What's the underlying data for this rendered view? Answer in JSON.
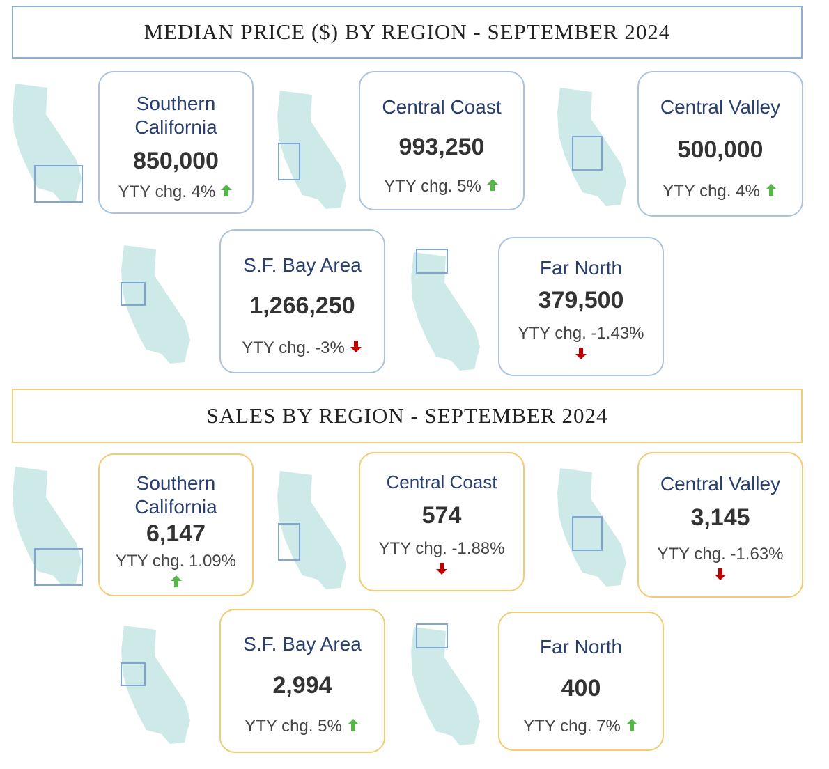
{
  "sections": [
    {
      "title": "MEDIAN PRICE ($) BY REGION - SEPTEMBER 2024",
      "cards": [
        {
          "region_line1": "Southern",
          "region_line2": "California",
          "value": "850,000",
          "chg": "YTY chg. 4%",
          "direction": "up"
        },
        {
          "region_line1": "Central Coast",
          "value": "993,250",
          "chg": "YTY chg. 5%",
          "direction": "up"
        },
        {
          "region_line1": "Central Valley",
          "value": "500,000",
          "chg": "YTY chg. 4%",
          "direction": "up"
        },
        {
          "region_line1": "S.F. Bay Area",
          "value": "1,266,250",
          "chg": "YTY chg. -3%",
          "direction": "down"
        },
        {
          "region_line1": "Far North",
          "value": "379,500",
          "chg": "YTY chg. -1.43%",
          "direction": "down"
        }
      ]
    },
    {
      "title": "SALES BY REGION - SEPTEMBER 2024",
      "cards": [
        {
          "region_line1": "Southern",
          "region_line2": "California",
          "value": "6,147",
          "chg": "YTY chg. 1.09%",
          "direction": "up"
        },
        {
          "region_line1": "Central Coast",
          "value": "574",
          "chg": "YTY chg. -1.88%",
          "direction": "down"
        },
        {
          "region_line1": "Central Valley",
          "value": "3,145",
          "chg": "YTY chg. -1.63%",
          "direction": "down"
        },
        {
          "region_line1": "S.F. Bay Area",
          "value": "2,994",
          "chg": "YTY chg. 5%",
          "direction": "up"
        },
        {
          "region_line1": "Far North",
          "value": "400",
          "chg": "YTY chg. 7%",
          "direction": "up"
        }
      ]
    }
  ],
  "colors": {
    "map_fill": "#cdeae8",
    "highlight_box": "#7ea6d8",
    "up_arrow": "#57b64a",
    "down_arrow": "#c00000",
    "price_border": "#a9c3df",
    "sales_border": "#f2cb73",
    "region_text": "#2a3f6f"
  },
  "chart_data": [
    {
      "type": "table",
      "title": "MEDIAN PRICE ($) BY REGION - SEPTEMBER 2024",
      "categories": [
        "Southern California",
        "Central Coast",
        "Central Valley",
        "S.F. Bay Area",
        "Far North"
      ],
      "values": [
        850000,
        993250,
        500000,
        1266250,
        379500
      ],
      "yty_change_percent": [
        4,
        5,
        4,
        -3,
        -1.43
      ]
    },
    {
      "type": "table",
      "title": "SALES BY REGION - SEPTEMBER 2024",
      "categories": [
        "Southern California",
        "Central Coast",
        "Central Valley",
        "S.F. Bay Area",
        "Far North"
      ],
      "values": [
        6147,
        574,
        3145,
        2994,
        400
      ],
      "yty_change_percent": [
        1.09,
        -1.88,
        -1.63,
        5,
        7
      ]
    }
  ]
}
